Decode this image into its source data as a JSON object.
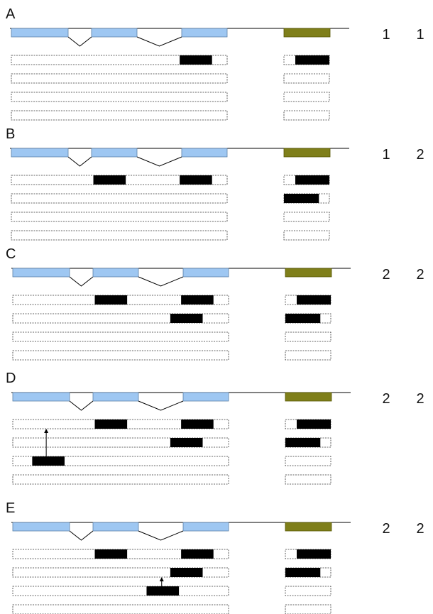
{
  "colors": {
    "exon": "#9ec7f2",
    "exon_stroke": "#5a7fa6",
    "right_block": "#7f7f1a",
    "block": "#000000",
    "axis": "#000000",
    "row_border": "#333333",
    "arrow": "#000000"
  },
  "panels": [
    {
      "label": "A",
      "values": [
        "1",
        "1"
      ],
      "rows": [
        {
          "main": [
            [
              0.78,
              0.93
            ]
          ],
          "side": [
            [
              0.25,
              1.0
            ]
          ]
        },
        {
          "main": [],
          "side": []
        },
        {
          "main": [],
          "side": []
        },
        {
          "main": [],
          "side": []
        }
      ],
      "arrows": []
    },
    {
      "label": "B",
      "values": [
        "1",
        "2"
      ],
      "rows": [
        {
          "main": [
            [
              0.38,
              0.53
            ],
            [
              0.78,
              0.93
            ]
          ],
          "side": [
            [
              0.25,
              1.0
            ]
          ]
        },
        {
          "main": [],
          "side": [
            [
              0.0,
              0.77
            ]
          ]
        },
        {
          "main": [],
          "side": []
        },
        {
          "main": [],
          "side": []
        }
      ],
      "arrows": []
    },
    {
      "label": "C",
      "values": [
        "2",
        "2"
      ],
      "rows": [
        {
          "main": [
            [
              0.38,
              0.53
            ],
            [
              0.78,
              0.93
            ]
          ],
          "side": [
            [
              0.25,
              1.0
            ]
          ]
        },
        {
          "main": [
            [
              0.73,
              0.88
            ]
          ],
          "side": [
            [
              0.0,
              0.77
            ]
          ]
        },
        {
          "main": [],
          "side": []
        },
        {
          "main": [],
          "side": []
        }
      ],
      "arrows": []
    },
    {
      "label": "D",
      "values": [
        "2",
        "2"
      ],
      "rows": [
        {
          "main": [
            [
              0.38,
              0.53
            ],
            [
              0.78,
              0.93
            ]
          ],
          "side": [
            [
              0.25,
              1.0
            ]
          ]
        },
        {
          "main": [
            [
              0.73,
              0.88
            ]
          ],
          "side": [
            [
              0.0,
              0.77
            ]
          ]
        },
        {
          "main": [
            [
              0.09,
              0.24
            ]
          ],
          "side": []
        },
        {
          "main": [],
          "side": []
        }
      ],
      "arrows": [
        {
          "at": 0.155,
          "from_row": 2,
          "to_row": 0
        }
      ]
    },
    {
      "label": "E",
      "values": [
        "2",
        "2"
      ],
      "rows": [
        {
          "main": [
            [
              0.38,
              0.53
            ],
            [
              0.78,
              0.93
            ]
          ],
          "side": [
            [
              0.25,
              1.0
            ]
          ]
        },
        {
          "main": [
            [
              0.73,
              0.88
            ]
          ],
          "side": [
            [
              0.0,
              0.77
            ]
          ]
        },
        {
          "main": [
            [
              0.62,
              0.77
            ]
          ],
          "side": []
        },
        {
          "main": [],
          "side": []
        }
      ],
      "arrows": [
        {
          "at": 0.69,
          "from_row": 2,
          "to_row": 1
        }
      ]
    }
  ]
}
